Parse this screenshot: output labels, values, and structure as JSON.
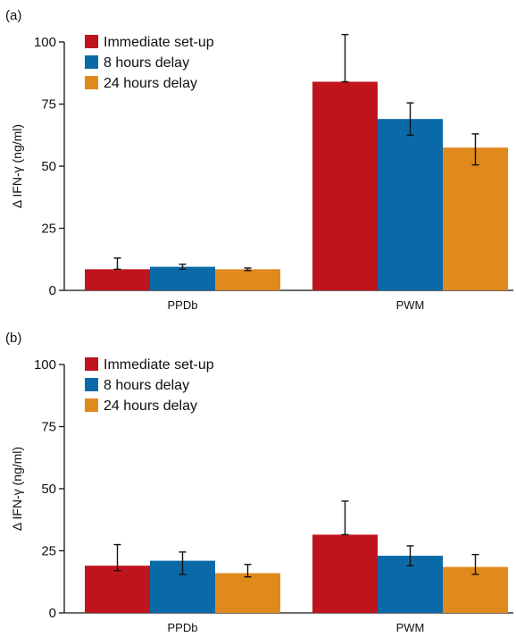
{
  "chart_data": [
    {
      "type": "bar",
      "panel_label": "(a)",
      "categories": [
        "PPDb",
        "PWM"
      ],
      "ylabel": "Δ IFN-γ (ng/ml)",
      "ylim": [
        0,
        100
      ],
      "yticks": [
        0,
        25,
        50,
        75,
        100
      ],
      "legend_position": "top-left",
      "series": [
        {
          "name": "Immediate set-up",
          "color": "#c0141c",
          "values": [
            8.5,
            84.0
          ],
          "err_low": [
            8.5,
            84.0
          ],
          "err_high": [
            13.0,
            103.0
          ]
        },
        {
          "name": "8 hours delay",
          "color": "#0a6aa8",
          "values": [
            9.5,
            69.0
          ],
          "err_low": [
            8.5,
            62.5
          ],
          "err_high": [
            10.5,
            75.5
          ]
        },
        {
          "name": "24 hours delay",
          "color": "#e08a1e",
          "values": [
            8.5,
            57.5
          ],
          "err_low": [
            8.0,
            50.5
          ],
          "err_high": [
            9.0,
            63.0
          ]
        }
      ]
    },
    {
      "type": "bar",
      "panel_label": "(b)",
      "categories": [
        "PPDb",
        "PWM"
      ],
      "ylabel": "Δ IFN-γ (ng/ml)",
      "ylim": [
        0,
        100
      ],
      "yticks": [
        0,
        25,
        50,
        75,
        100
      ],
      "legend_position": "top-left",
      "series": [
        {
          "name": "Immediate set-up",
          "color": "#c0141c",
          "values": [
            19.0,
            31.5
          ],
          "err_low": [
            17.0,
            31.5
          ],
          "err_high": [
            27.5,
            45.0
          ]
        },
        {
          "name": "8 hours delay",
          "color": "#0a6aa8",
          "values": [
            21.0,
            23.0
          ],
          "err_low": [
            15.5,
            19.0
          ],
          "err_high": [
            24.5,
            27.0
          ]
        },
        {
          "name": "24 hours delay",
          "color": "#e08a1e",
          "values": [
            16.0,
            18.5
          ],
          "err_low": [
            14.5,
            15.5
          ],
          "err_high": [
            19.5,
            23.5
          ]
        }
      ]
    }
  ]
}
